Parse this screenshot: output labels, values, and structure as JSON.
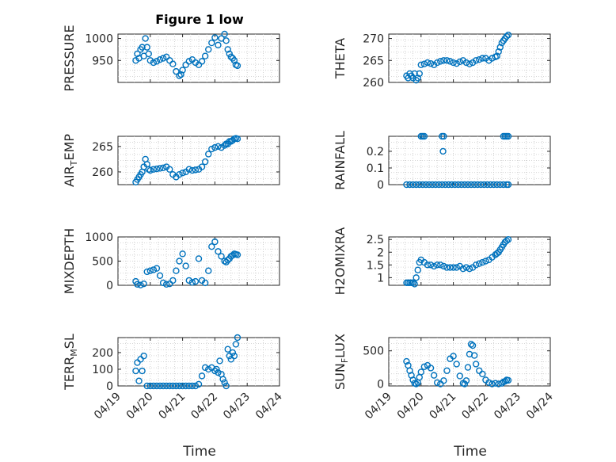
{
  "figure_title": "Figure 1 low",
  "xlabel": "Time",
  "x_ticks": [
    "04/19",
    "04/20",
    "04/21",
    "04/22",
    "04/23",
    "04/24"
  ],
  "marker_color": "#0072bd",
  "chart_data": [
    {
      "type": "scatter",
      "name": "pressure",
      "ylabel": "PRESSURE",
      "ylim": [
        900,
        1010
      ],
      "yticks": [
        950,
        1000
      ],
      "xlim": [
        0,
        5
      ],
      "grid": true,
      "x": [
        0.55,
        0.6,
        0.65,
        0.7,
        0.75,
        0.8,
        0.85,
        0.9,
        0.95,
        1.0,
        1.1,
        1.2,
        1.3,
        1.4,
        1.5,
        1.6,
        1.7,
        1.8,
        1.9,
        1.95,
        2.0,
        2.1,
        2.2,
        2.3,
        2.4,
        2.5,
        2.6,
        2.7,
        2.8,
        2.9,
        3.0,
        3.1,
        3.2,
        3.3,
        3.35,
        3.4,
        3.45,
        3.5,
        3.55,
        3.6,
        3.65,
        3.7
      ],
      "y": [
        950,
        965,
        955,
        975,
        980,
        960,
        1000,
        980,
        965,
        950,
        945,
        948,
        952,
        955,
        958,
        950,
        942,
        925,
        915,
        918,
        928,
        940,
        948,
        952,
        945,
        940,
        948,
        960,
        975,
        990,
        1002,
        985,
        1000,
        1010,
        995,
        975,
        965,
        958,
        955,
        950,
        940,
        938
      ]
    },
    {
      "type": "scatter",
      "name": "theta",
      "ylabel": "THETA",
      "ylim": [
        260,
        271
      ],
      "yticks": [
        260,
        265,
        270
      ],
      "xlim": [
        0,
        5
      ],
      "grid": true,
      "x": [
        0.55,
        0.6,
        0.65,
        0.7,
        0.75,
        0.8,
        0.85,
        0.9,
        0.95,
        1.0,
        1.1,
        1.2,
        1.3,
        1.4,
        1.5,
        1.6,
        1.7,
        1.8,
        1.9,
        2.0,
        2.1,
        2.2,
        2.3,
        2.4,
        2.5,
        2.6,
        2.7,
        2.8,
        2.9,
        3.0,
        3.1,
        3.2,
        3.3,
        3.35,
        3.4,
        3.45,
        3.5,
        3.55,
        3.6,
        3.65,
        3.7
      ],
      "y": [
        261.5,
        261,
        262,
        261.5,
        261,
        262,
        260.5,
        261,
        262,
        264,
        264.2,
        264.5,
        264.3,
        264,
        264.5,
        264.8,
        265,
        265,
        264.8,
        264.5,
        264.3,
        264.7,
        265,
        264.5,
        264.2,
        264.5,
        265,
        265.2,
        265.5,
        265.5,
        265,
        265.5,
        265.8,
        266,
        267,
        268,
        269,
        269.5,
        270,
        270.5,
        270.8
      ]
    },
    {
      "type": "scatter",
      "name": "air-temp",
      "ylabel": "AIR_TEMP",
      "ylim": [
        257.5,
        267
      ],
      "yticks": [
        260,
        265
      ],
      "xlim": [
        0,
        5
      ],
      "grid": true,
      "x": [
        0.55,
        0.6,
        0.65,
        0.7,
        0.75,
        0.8,
        0.85,
        0.9,
        0.95,
        1.0,
        1.1,
        1.2,
        1.3,
        1.4,
        1.5,
        1.6,
        1.7,
        1.8,
        1.9,
        2.0,
        2.1,
        2.2,
        2.3,
        2.4,
        2.5,
        2.6,
        2.7,
        2.8,
        2.9,
        3.0,
        3.1,
        3.2,
        3.3,
        3.35,
        3.4,
        3.45,
        3.5,
        3.55,
        3.6,
        3.65,
        3.7
      ],
      "y": [
        258,
        258.5,
        259,
        259.5,
        260,
        261,
        262.5,
        261.5,
        260.5,
        260.3,
        260.5,
        260.6,
        260.7,
        260.8,
        261,
        260.5,
        259.5,
        259,
        259.5,
        259.8,
        260,
        260.5,
        260.3,
        260.4,
        260.5,
        261,
        262,
        263.5,
        264.5,
        264.8,
        265,
        264.8,
        265.2,
        265.5,
        265.5,
        266,
        266,
        266.2,
        266.5,
        266.6,
        266.5
      ]
    },
    {
      "type": "scatter",
      "name": "rainfall",
      "ylabel": "RAINFALL",
      "ylim": [
        0,
        0.29
      ],
      "yticks": [
        0,
        0.1,
        0.2
      ],
      "xlim": [
        0,
        5
      ],
      "grid": true,
      "x": [
        0.55,
        0.65,
        0.75,
        0.85,
        0.95,
        1.05,
        1.15,
        1.25,
        1.35,
        1.45,
        1.55,
        1.65,
        1.75,
        1.85,
        1.95,
        2.05,
        2.15,
        2.25,
        2.35,
        2.45,
        2.55,
        2.65,
        2.75,
        2.85,
        2.95,
        3.05,
        3.15,
        3.25,
        3.35,
        3.45,
        3.55,
        3.65,
        3.7,
        1.0,
        1.05,
        1.1,
        1.65,
        1.7,
        1.68,
        3.55,
        3.6,
        3.65,
        3.7
      ],
      "y": [
        0,
        0,
        0,
        0,
        0,
        0,
        0,
        0,
        0,
        0,
        0,
        0,
        0,
        0,
        0,
        0,
        0,
        0,
        0,
        0,
        0,
        0,
        0,
        0,
        0,
        0,
        0,
        0,
        0,
        0,
        0,
        0,
        0,
        0.29,
        0.29,
        0.29,
        0.29,
        0.29,
        0.2,
        0.29,
        0.29,
        0.29,
        0.29
      ]
    },
    {
      "type": "scatter",
      "name": "mixdepth",
      "ylabel": "MIXDEPTH",
      "ylim": [
        0,
        1000
      ],
      "yticks": [
        0,
        500,
        1000
      ],
      "xlim": [
        0,
        5
      ],
      "grid": true,
      "x": [
        0.55,
        0.6,
        0.7,
        0.8,
        0.9,
        1.0,
        1.1,
        1.2,
        1.3,
        1.4,
        1.5,
        1.6,
        1.7,
        1.8,
        1.9,
        2.0,
        2.1,
        2.2,
        2.3,
        2.4,
        2.5,
        2.6,
        2.7,
        2.8,
        2.9,
        3.0,
        3.1,
        3.2,
        3.3,
        3.35,
        3.4,
        3.45,
        3.5,
        3.55,
        3.6,
        3.65,
        3.7
      ],
      "y": [
        80,
        20,
        5,
        30,
        280,
        300,
        320,
        350,
        200,
        50,
        20,
        30,
        100,
        300,
        500,
        650,
        400,
        100,
        60,
        80,
        550,
        100,
        50,
        300,
        800,
        900,
        700,
        600,
        500,
        480,
        520,
        550,
        600,
        620,
        650,
        640,
        630
      ]
    },
    {
      "type": "scatter",
      "name": "h2omixra",
      "ylabel": "H2OMIXRA",
      "ylim": [
        0.7,
        2.6
      ],
      "yticks": [
        1,
        1.5,
        2,
        2.5
      ],
      "xlim": [
        0,
        5
      ],
      "grid": true,
      "x": [
        0.55,
        0.6,
        0.65,
        0.7,
        0.75,
        0.8,
        0.85,
        0.9,
        0.95,
        1.0,
        1.1,
        1.2,
        1.3,
        1.4,
        1.5,
        1.6,
        1.7,
        1.8,
        1.9,
        2.0,
        2.1,
        2.2,
        2.3,
        2.4,
        2.5,
        2.6,
        2.7,
        2.8,
        2.9,
        3.0,
        3.1,
        3.2,
        3.3,
        3.35,
        3.4,
        3.45,
        3.5,
        3.55,
        3.6,
        3.65,
        3.7
      ],
      "y": [
        0.8,
        0.8,
        0.8,
        0.8,
        0.8,
        0.75,
        1.0,
        1.3,
        1.6,
        1.7,
        1.6,
        1.5,
        1.5,
        1.45,
        1.5,
        1.5,
        1.45,
        1.4,
        1.4,
        1.4,
        1.4,
        1.45,
        1.35,
        1.4,
        1.35,
        1.4,
        1.5,
        1.55,
        1.6,
        1.65,
        1.7,
        1.8,
        1.9,
        1.95,
        2.0,
        2.1,
        2.2,
        2.3,
        2.4,
        2.45,
        2.5
      ]
    },
    {
      "type": "scatter",
      "name": "terr-msl",
      "ylabel": "TERR_MSL",
      "ylim": [
        0,
        290
      ],
      "yticks": [
        0,
        100,
        200
      ],
      "xlim": [
        0,
        5
      ],
      "grid": true,
      "x": [
        0.55,
        0.6,
        0.65,
        0.7,
        0.75,
        0.8,
        0.9,
        1.0,
        1.1,
        1.2,
        1.3,
        1.4,
        1.5,
        1.6,
        1.7,
        1.8,
        1.9,
        2.0,
        2.1,
        2.2,
        2.3,
        2.4,
        2.5,
        2.6,
        2.7,
        2.8,
        2.9,
        3.0,
        3.05,
        3.1,
        3.15,
        3.2,
        3.25,
        3.3,
        3.35,
        3.4,
        3.45,
        3.5,
        3.55,
        3.6,
        3.65,
        3.7
      ],
      "y": [
        90,
        140,
        30,
        160,
        90,
        180,
        0,
        0,
        0,
        0,
        0,
        0,
        0,
        0,
        0,
        0,
        0,
        0,
        0,
        0,
        0,
        0,
        10,
        60,
        110,
        100,
        110,
        90,
        100,
        80,
        150,
        70,
        40,
        20,
        0,
        220,
        180,
        160,
        200,
        180,
        250,
        290
      ]
    },
    {
      "type": "scatter",
      "name": "sun-flux",
      "ylabel": "SUN_FLUX",
      "ylim": [
        -30,
        700
      ],
      "yticks": [
        0,
        500
      ],
      "xlim": [
        0,
        5
      ],
      "grid": true,
      "x": [
        0.55,
        0.6,
        0.65,
        0.7,
        0.75,
        0.8,
        0.85,
        0.9,
        0.95,
        1.0,
        1.1,
        1.2,
        1.3,
        1.4,
        1.5,
        1.6,
        1.7,
        1.8,
        1.9,
        2.0,
        2.1,
        2.2,
        2.3,
        2.35,
        2.4,
        2.45,
        2.5,
        2.55,
        2.6,
        2.65,
        2.7,
        2.8,
        2.9,
        3.0,
        3.1,
        3.2,
        3.3,
        3.4,
        3.5,
        3.55,
        3.6,
        3.65,
        3.7
      ],
      "y": [
        340,
        280,
        200,
        130,
        60,
        10,
        0,
        20,
        100,
        180,
        260,
        280,
        240,
        130,
        20,
        0,
        50,
        200,
        380,
        420,
        300,
        120,
        10,
        0,
        50,
        250,
        450,
        600,
        580,
        430,
        300,
        200,
        150,
        60,
        20,
        0,
        10,
        0,
        10,
        30,
        40,
        60,
        55
      ]
    }
  ]
}
